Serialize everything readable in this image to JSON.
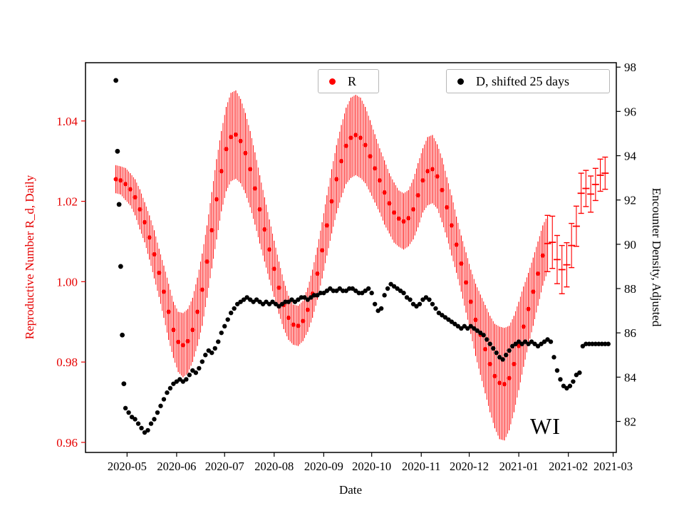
{
  "figure": {
    "xlabel": "Date",
    "left_ylabel": "Reproductive Number R_d, Daily",
    "right_ylabel": "Encounter Density, Adjusted",
    "annotation": "WI",
    "legends": [
      {
        "label": "R",
        "color": "#ff0000"
      },
      {
        "label": "D, shifted 25 days",
        "color": "#000000"
      }
    ]
  },
  "chart_data": {
    "type": "scatter",
    "title": "",
    "xlabel": "Date",
    "grid": false,
    "x_axis": {
      "lim": [
        "2020-04-05",
        "2021-03-03"
      ],
      "tick_dates": [
        "2020-05-01",
        "2020-06-01",
        "2020-07-01",
        "2020-08-01",
        "2020-09-01",
        "2020-10-01",
        "2020-11-01",
        "2020-12-01",
        "2021-01-01",
        "2021-02-01",
        "2021-03-01"
      ],
      "tick_labels": [
        "2020-05",
        "2020-06",
        "2020-07",
        "2020-08",
        "2020-09",
        "2020-10",
        "2020-11",
        "2020-12",
        "2021-01",
        "2021-02",
        "2021-03"
      ]
    },
    "left_axis": {
      "label": "Reproductive Number R_d, Daily",
      "color": "#e60000",
      "lim": [
        0.9575,
        1.0545
      ],
      "tick_values": [
        0.96,
        0.98,
        1.0,
        1.02,
        1.04
      ],
      "tick_labels": [
        "0.96",
        "0.98",
        "1.00",
        "1.02",
        "1.04"
      ]
    },
    "right_axis": {
      "label": "Encounter Density, Adjusted",
      "color": "#000000",
      "lim": [
        80.6,
        98.2
      ],
      "tick_values": [
        82,
        84,
        86,
        88,
        90,
        92,
        94,
        96,
        98
      ],
      "tick_labels": [
        "82",
        "84",
        "86",
        "88",
        "90",
        "92",
        "94",
        "96",
        "98"
      ]
    },
    "series": [
      {
        "name": "R",
        "axis": "left",
        "color": "#ff0000",
        "marker": "circle-errorbar",
        "start_date": "2020-04-24",
        "interval_days": 3,
        "cap_from_index": 90,
        "values": [
          1.0255,
          1.0252,
          1.0243,
          1.023,
          1.021,
          1.018,
          1.0148,
          1.011,
          1.0068,
          1.0022,
          0.9975,
          0.9925,
          0.988,
          0.985,
          0.9842,
          0.9852,
          0.988,
          0.9925,
          0.998,
          1.005,
          1.0128,
          1.0205,
          1.0275,
          1.033,
          1.036,
          1.0366,
          1.035,
          1.032,
          1.028,
          1.0232,
          1.018,
          1.013,
          1.008,
          1.0032,
          0.9985,
          0.9942,
          0.991,
          0.9893,
          0.989,
          0.9902,
          0.993,
          0.997,
          1.002,
          1.0078,
          1.014,
          1.02,
          1.0255,
          1.03,
          1.0338,
          1.0358,
          1.0365,
          1.0358,
          1.034,
          1.0312,
          1.0282,
          1.0252,
          1.0222,
          1.0195,
          1.0172,
          1.0157,
          1.015,
          1.0158,
          1.018,
          1.0215,
          1.0252,
          1.0275,
          1.028,
          1.0262,
          1.0228,
          1.0185,
          1.014,
          1.0092,
          1.0045,
          0.9998,
          0.995,
          0.9905,
          0.9868,
          0.9832,
          0.9795,
          0.9765,
          0.9748,
          0.9745,
          0.976,
          0.9795,
          0.984,
          0.9888,
          0.9932,
          0.9975,
          1.002,
          1.0065,
          1.0095,
          1.0098,
          1.0055,
          1.003,
          1.0042,
          1.009,
          1.0138,
          1.022,
          1.0232,
          1.0218,
          1.0242,
          1.0265,
          1.027
        ],
        "errors": [
          0.0035,
          0.0035,
          0.004,
          0.004,
          0.0045,
          0.005,
          0.005,
          0.0055,
          0.006,
          0.006,
          0.0065,
          0.007,
          0.007,
          0.0075,
          0.008,
          0.008,
          0.008,
          0.0085,
          0.009,
          0.009,
          0.0095,
          0.01,
          0.01,
          0.0105,
          0.011,
          0.011,
          0.0105,
          0.01,
          0.0095,
          0.009,
          0.0085,
          0.008,
          0.0075,
          0.007,
          0.0065,
          0.006,
          0.0055,
          0.005,
          0.005,
          0.005,
          0.0055,
          0.006,
          0.0065,
          0.007,
          0.0075,
          0.008,
          0.0085,
          0.009,
          0.0095,
          0.01,
          0.01,
          0.01,
          0.0095,
          0.009,
          0.0085,
          0.008,
          0.008,
          0.0075,
          0.0075,
          0.007,
          0.007,
          0.007,
          0.0075,
          0.008,
          0.008,
          0.0085,
          0.0085,
          0.008,
          0.008,
          0.0075,
          0.0075,
          0.007,
          0.007,
          0.0075,
          0.008,
          0.009,
          0.01,
          0.011,
          0.012,
          0.013,
          0.014,
          0.014,
          0.013,
          0.012,
          0.011,
          0.01,
          0.009,
          0.0085,
          0.008,
          0.0075,
          0.007,
          0.0065,
          0.006,
          0.006,
          0.0055,
          0.0055,
          0.005,
          0.005,
          0.0045,
          0.0045,
          0.004,
          0.004,
          0.004
        ]
      },
      {
        "name": "D, shifted 25 days",
        "axis": "right",
        "color": "#000000",
        "marker": "circle",
        "outliers": {
          "dates": [
            "2020-04-24",
            "2020-04-25",
            "2020-04-26",
            "2020-04-27",
            "2020-04-28",
            "2020-04-29"
          ],
          "values": [
            97.4,
            94.2,
            91.8,
            89.0,
            85.9,
            83.7
          ]
        },
        "start_date": "2020-04-30",
        "interval_days": 2,
        "values": [
          82.6,
          82.4,
          82.2,
          82.1,
          81.9,
          81.7,
          81.5,
          81.6,
          81.9,
          82.1,
          82.4,
          82.7,
          83.0,
          83.3,
          83.5,
          83.7,
          83.8,
          83.9,
          83.8,
          83.9,
          84.1,
          84.3,
          84.2,
          84.4,
          84.7,
          85.0,
          85.2,
          85.1,
          85.3,
          85.6,
          86.0,
          86.3,
          86.6,
          86.9,
          87.1,
          87.3,
          87.4,
          87.5,
          87.6,
          87.5,
          87.4,
          87.5,
          87.4,
          87.3,
          87.4,
          87.3,
          87.4,
          87.3,
          87.2,
          87.3,
          87.4,
          87.4,
          87.5,
          87.4,
          87.5,
          87.6,
          87.6,
          87.5,
          87.6,
          87.7,
          87.7,
          87.8,
          87.8,
          87.9,
          88.0,
          87.9,
          87.9,
          88.0,
          87.9,
          87.9,
          88.0,
          88.0,
          87.9,
          87.8,
          87.8,
          87.9,
          88.0,
          87.8,
          87.3,
          87.0,
          87.1,
          87.7,
          88.0,
          88.2,
          88.1,
          88.0,
          87.9,
          87.8,
          87.6,
          87.5,
          87.3,
          87.2,
          87.3,
          87.5,
          87.6,
          87.5,
          87.3,
          87.1,
          86.9,
          86.8,
          86.7,
          86.6,
          86.5,
          86.4,
          86.3,
          86.2,
          86.3,
          86.2,
          86.3,
          86.2,
          86.1,
          86.0,
          85.9,
          85.7,
          85.5,
          85.3,
          85.1,
          84.9,
          84.8,
          85.0,
          85.2,
          85.4,
          85.5,
          85.6,
          85.5,
          85.6,
          85.5,
          85.6,
          85.5,
          85.4,
          85.5,
          85.6,
          85.7,
          85.6,
          84.9,
          84.3,
          83.9,
          83.6,
          83.5,
          83.6,
          83.8,
          84.1,
          84.2,
          85.4,
          85.5,
          85.5,
          85.5,
          85.5,
          85.5,
          85.5,
          85.5,
          85.5
        ]
      }
    ],
    "annotation": {
      "text": "WI"
    }
  }
}
